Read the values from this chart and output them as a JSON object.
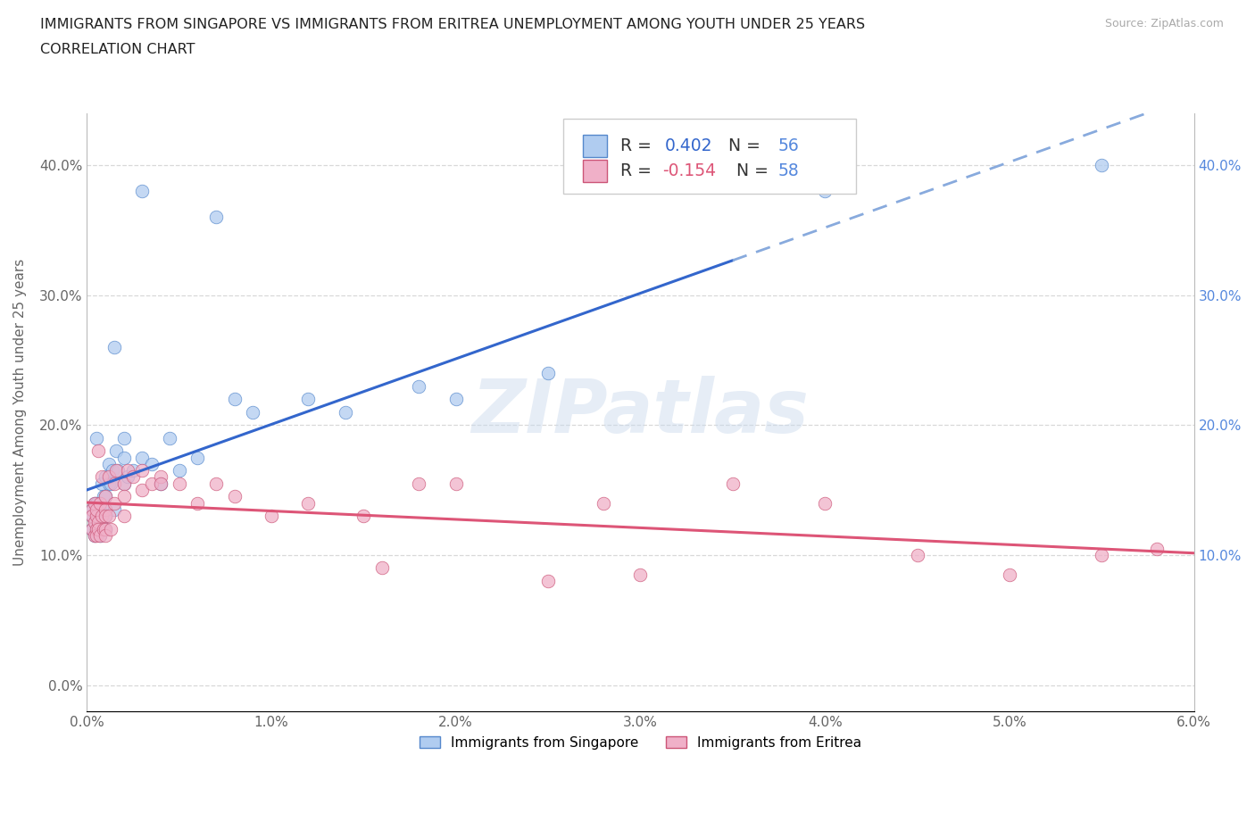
{
  "title_line1": "IMMIGRANTS FROM SINGAPORE VS IMMIGRANTS FROM ERITREA UNEMPLOYMENT AMONG YOUTH UNDER 25 YEARS",
  "title_line2": "CORRELATION CHART",
  "source": "Source: ZipAtlas.com",
  "ylabel_label": "Unemployment Among Youth under 25 years",
  "xlim": [
    0.0,
    0.06
  ],
  "ylim": [
    -0.02,
    0.44
  ],
  "xticks": [
    0.0,
    0.01,
    0.02,
    0.03,
    0.04,
    0.05,
    0.06
  ],
  "xticklabels": [
    "0.0%",
    "1.0%",
    "2.0%",
    "3.0%",
    "4.0%",
    "5.0%",
    "6.0%"
  ],
  "yticks_left": [
    0.0,
    0.1,
    0.2,
    0.3,
    0.4
  ],
  "yticklabels_left": [
    "0.0%",
    "10.0%",
    "20.0%",
    "30.0%",
    "40.0%"
  ],
  "yticks_right": [
    0.1,
    0.2,
    0.3,
    0.4
  ],
  "yticklabels_right": [
    "10.0%",
    "20.0%",
    "30.0%",
    "40.0%"
  ],
  "singapore_face": "#b0ccf0",
  "singapore_edge": "#5588cc",
  "eritrea_face": "#f0b0c8",
  "eritrea_edge": "#cc5577",
  "singapore_line_color": "#3366cc",
  "singapore_line_dashed_color": "#88aadd",
  "eritrea_line_color": "#dd5577",
  "R_singapore": 0.402,
  "N_singapore": 56,
  "R_eritrea": -0.154,
  "N_eritrea": 58,
  "legend_label_singapore": "Immigrants from Singapore",
  "legend_label_eritrea": "Immigrants from Eritrea",
  "sg_line_solid_end": 0.035,
  "singapore_x": [
    0.0003,
    0.0003,
    0.0003,
    0.0004,
    0.0004,
    0.0004,
    0.0005,
    0.0005,
    0.0005,
    0.0005,
    0.0006,
    0.0006,
    0.0006,
    0.0007,
    0.0007,
    0.0007,
    0.0008,
    0.0008,
    0.0008,
    0.0009,
    0.0009,
    0.001,
    0.001,
    0.001,
    0.001,
    0.001,
    0.0012,
    0.0012,
    0.0013,
    0.0014,
    0.0015,
    0.0015,
    0.0016,
    0.0017,
    0.002,
    0.002,
    0.002,
    0.0022,
    0.0025,
    0.003,
    0.003,
    0.0035,
    0.004,
    0.0045,
    0.005,
    0.006,
    0.007,
    0.008,
    0.009,
    0.012,
    0.014,
    0.018,
    0.02,
    0.025,
    0.04,
    0.055
  ],
  "singapore_y": [
    0.135,
    0.12,
    0.13,
    0.125,
    0.115,
    0.14,
    0.13,
    0.12,
    0.14,
    0.19,
    0.125,
    0.135,
    0.12,
    0.115,
    0.135,
    0.12,
    0.13,
    0.155,
    0.12,
    0.13,
    0.145,
    0.13,
    0.135,
    0.145,
    0.16,
    0.12,
    0.155,
    0.17,
    0.155,
    0.165,
    0.26,
    0.135,
    0.18,
    0.165,
    0.175,
    0.155,
    0.19,
    0.16,
    0.165,
    0.175,
    0.38,
    0.17,
    0.155,
    0.19,
    0.165,
    0.175,
    0.36,
    0.22,
    0.21,
    0.22,
    0.21,
    0.23,
    0.22,
    0.24,
    0.38,
    0.4
  ],
  "eritrea_x": [
    0.0003,
    0.0003,
    0.0003,
    0.0004,
    0.0004,
    0.0004,
    0.0005,
    0.0005,
    0.0005,
    0.0005,
    0.0006,
    0.0006,
    0.0006,
    0.0007,
    0.0007,
    0.0008,
    0.0008,
    0.0009,
    0.001,
    0.001,
    0.001,
    0.001,
    0.001,
    0.0012,
    0.0012,
    0.0013,
    0.0015,
    0.0015,
    0.0016,
    0.002,
    0.002,
    0.002,
    0.0022,
    0.0025,
    0.003,
    0.003,
    0.0035,
    0.004,
    0.004,
    0.005,
    0.006,
    0.007,
    0.008,
    0.01,
    0.012,
    0.015,
    0.016,
    0.018,
    0.02,
    0.025,
    0.028,
    0.03,
    0.035,
    0.04,
    0.045,
    0.05,
    0.055,
    0.058
  ],
  "eritrea_y": [
    0.135,
    0.12,
    0.13,
    0.125,
    0.115,
    0.14,
    0.13,
    0.12,
    0.115,
    0.135,
    0.125,
    0.18,
    0.12,
    0.115,
    0.14,
    0.13,
    0.16,
    0.12,
    0.135,
    0.13,
    0.12,
    0.145,
    0.115,
    0.16,
    0.13,
    0.12,
    0.155,
    0.14,
    0.165,
    0.155,
    0.145,
    0.13,
    0.165,
    0.16,
    0.15,
    0.165,
    0.155,
    0.16,
    0.155,
    0.155,
    0.14,
    0.155,
    0.145,
    0.13,
    0.14,
    0.13,
    0.09,
    0.155,
    0.155,
    0.08,
    0.14,
    0.085,
    0.155,
    0.14,
    0.1,
    0.085,
    0.1,
    0.105
  ],
  "background_color": "#ffffff",
  "grid_color": "#d8d8d8",
  "watermark": "ZIPatlas",
  "right_tick_color": "#5588dd"
}
